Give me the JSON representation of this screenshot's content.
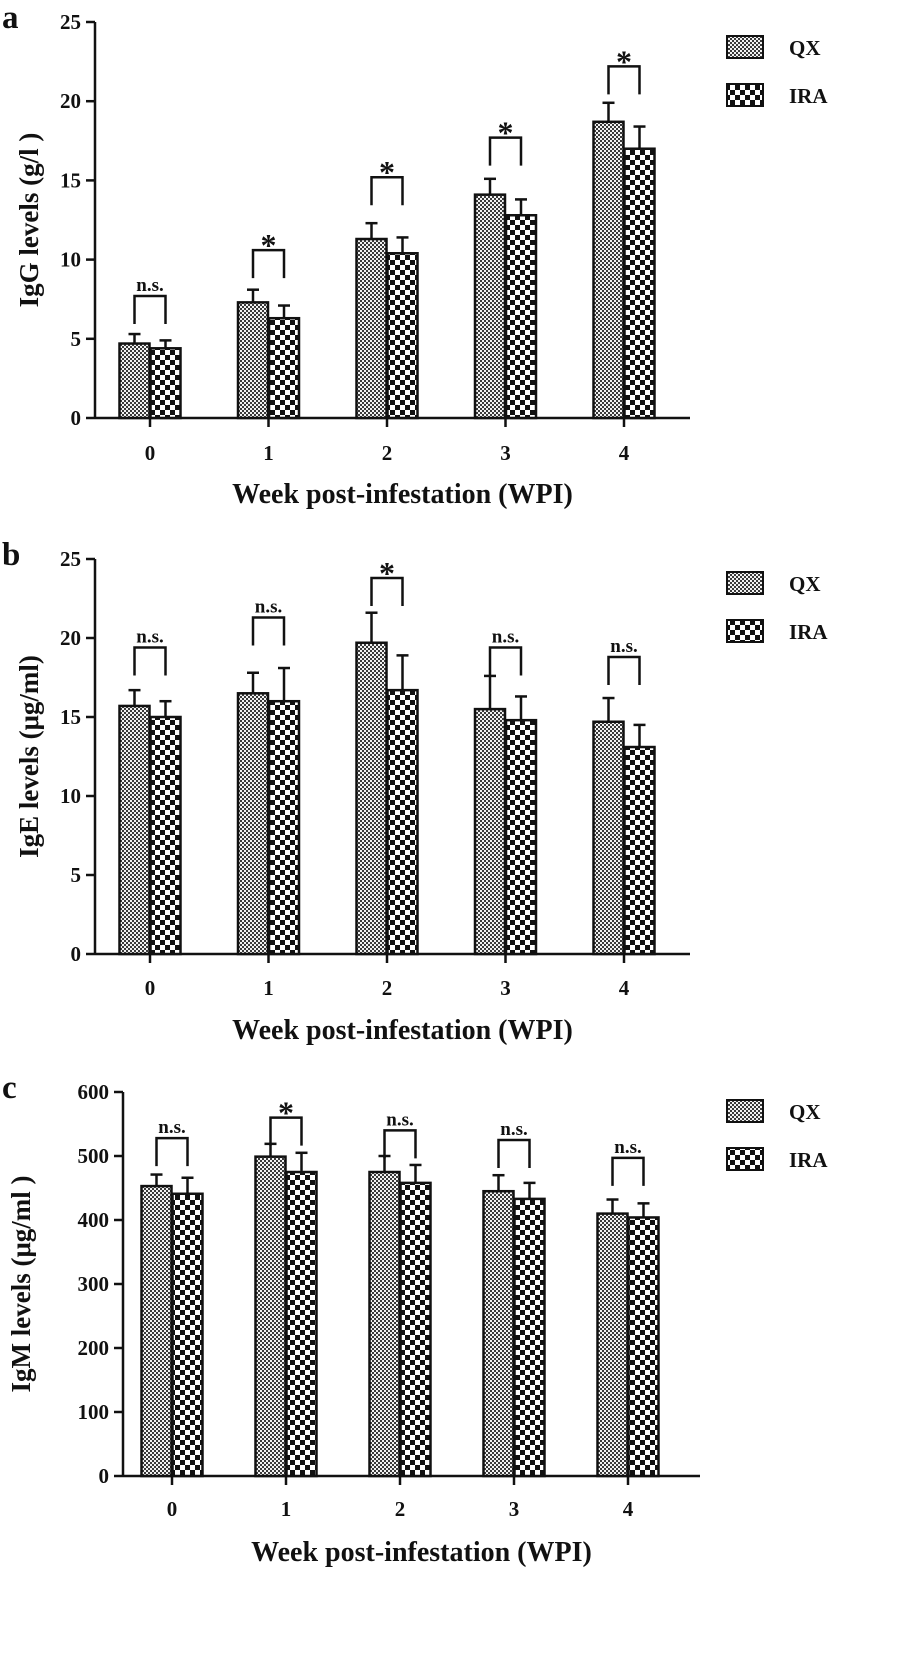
{
  "colors": {
    "ink": "#111111",
    "background": "#ffffff"
  },
  "legend": [
    "QX",
    "IRA"
  ],
  "chart_data": [
    {
      "type": "bar",
      "panel": "a",
      "xlabel": "Week post-infestation (WPI)",
      "ylabel": "IgG levels (g/l )",
      "ylim": [
        0,
        25
      ],
      "yticks": [
        0,
        5,
        10,
        15,
        20,
        25
      ],
      "categories": [
        "0",
        "1",
        "2",
        "3",
        "4"
      ],
      "series": [
        {
          "name": "QX",
          "values": [
            4.7,
            7.3,
            11.3,
            14.1,
            18.7
          ],
          "errors": [
            0.6,
            0.8,
            1.0,
            1.0,
            1.2
          ]
        },
        {
          "name": "IRA",
          "values": [
            4.4,
            6.3,
            10.4,
            12.8,
            17.0
          ],
          "errors": [
            0.5,
            0.8,
            1.0,
            1.0,
            1.4
          ]
        }
      ],
      "significance": [
        "n.s.",
        "*",
        "*",
        "*",
        "*"
      ],
      "bracket_tops": [
        7.7,
        10.6,
        15.2,
        17.7,
        22.2
      ],
      "legend_position": "top-right"
    },
    {
      "type": "bar",
      "panel": "b",
      "xlabel": "Week post-infestation (WPI)",
      "ylabel": "IgE levels (μg/ml)",
      "ylim": [
        0,
        25
      ],
      "yticks": [
        0,
        5,
        10,
        15,
        20,
        25
      ],
      "categories": [
        "0",
        "1",
        "2",
        "3",
        "4"
      ],
      "series": [
        {
          "name": "QX",
          "values": [
            15.7,
            16.5,
            19.7,
            15.5,
            14.7
          ],
          "errors": [
            1.0,
            1.3,
            1.9,
            2.1,
            1.5
          ]
        },
        {
          "name": "IRA",
          "values": [
            15.0,
            16.0,
            16.7,
            14.8,
            13.1
          ],
          "errors": [
            1.0,
            2.1,
            2.2,
            1.5,
            1.4
          ]
        }
      ],
      "significance": [
        "n.s.",
        "n.s.",
        "*",
        "n.s.",
        "n.s."
      ],
      "bracket_tops": [
        19.4,
        21.3,
        23.8,
        19.4,
        18.8
      ],
      "legend_position": "top-right"
    },
    {
      "type": "bar",
      "panel": "c",
      "xlabel": "Week post-infestation (WPI)",
      "ylabel": "IgM levels (μg/ml )",
      "ylim": [
        0,
        600
      ],
      "yticks": [
        0,
        100,
        200,
        300,
        400,
        500,
        600
      ],
      "categories": [
        "0",
        "1",
        "2",
        "3",
        "4"
      ],
      "series": [
        {
          "name": "QX",
          "values": [
            453,
            499,
            475,
            445,
            410
          ],
          "errors": [
            18,
            20,
            25,
            25,
            22
          ]
        },
        {
          "name": "IRA",
          "values": [
            441,
            475,
            458,
            433,
            404
          ],
          "errors": [
            25,
            30,
            28,
            25,
            22
          ]
        }
      ],
      "significance": [
        "n.s.",
        "*",
        "n.s.",
        "n.s.",
        "n.s."
      ],
      "bracket_tops": [
        528,
        560,
        540,
        525,
        497
      ],
      "legend_position": "top-right"
    }
  ]
}
